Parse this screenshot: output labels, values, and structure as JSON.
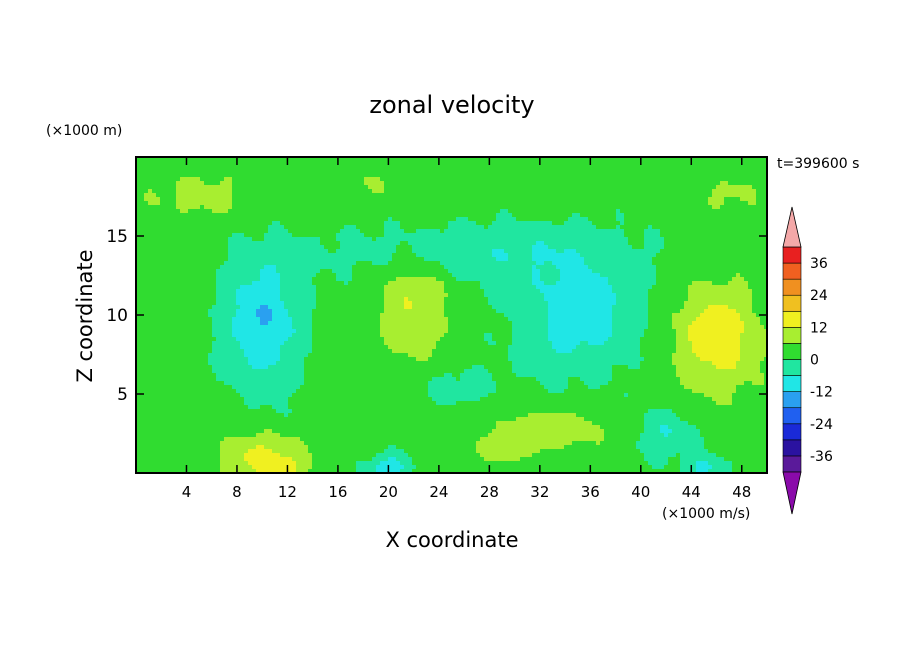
{
  "chart_data": {
    "type": "heatmap",
    "title": "zonal velocity",
    "xlabel": "X coordinate",
    "ylabel": "Z coordinate",
    "y_unit_label": "(×1000 m)",
    "colorbar_unit_label": "(×1000 m/s)",
    "time_label": "t=399600 s",
    "xlim": [
      0,
      50
    ],
    "ylim": [
      0,
      20
    ],
    "xticks": [
      4,
      8,
      12,
      16,
      20,
      24,
      28,
      32,
      36,
      40,
      44,
      48
    ],
    "yticks": [
      5,
      10,
      15
    ],
    "colorbar": {
      "levels": [
        -42,
        -36,
        -30,
        -24,
        -18,
        -12,
        -6,
        0,
        6,
        12,
        18,
        24,
        30,
        36,
        42
      ],
      "tick_values": [
        -36,
        -24,
        -12,
        0,
        12,
        24,
        36
      ],
      "colors": [
        "#5a1a9a",
        "#2a12a0",
        "#1a2ad8",
        "#2060f0",
        "#2aa0f0",
        "#20e6e6",
        "#20e6a0",
        "#30dc30",
        "#a8ee30",
        "#f0f020",
        "#f0c020",
        "#f09020",
        "#f06020",
        "#e82020"
      ],
      "under_color": "#8a0aaa",
      "over_color": "#f4a8a8"
    },
    "features": [
      {
        "x": 10,
        "z": 1.0,
        "amp": 12,
        "sx": 3.2,
        "sz": 1.6
      },
      {
        "x": 12,
        "z": 0.3,
        "amp": 6,
        "sx": 2.0,
        "sz": 0.8
      },
      {
        "x": 46,
        "z": 8.5,
        "amp": 14,
        "sx": 3.5,
        "sz": 3.5
      },
      {
        "x": 22,
        "z": 10.5,
        "amp": 10,
        "sx": 3.0,
        "sz": 3.5
      },
      {
        "x": 33,
        "z": 2.8,
        "amp": 8,
        "sx": 5.0,
        "sz": 1.3
      },
      {
        "x": 29,
        "z": 1.3,
        "amp": 5,
        "sx": 3.0,
        "sz": 1.0
      },
      {
        "x": 5,
        "z": 17.6,
        "amp": 6,
        "sx": 5.0,
        "sz": 1.6
      },
      {
        "x": 18,
        "z": 18.4,
        "amp": 4,
        "sx": 4.0,
        "sz": 1.2
      },
      {
        "x": 47,
        "z": 17.6,
        "amp": 5,
        "sx": 3.0,
        "sz": 1.3
      },
      {
        "x": 10,
        "z": 9.5,
        "amp": -14,
        "sx": 3.0,
        "sz": 4.0
      },
      {
        "x": 35,
        "z": 10.0,
        "amp": -12,
        "sx": 4.5,
        "sz": 3.5
      },
      {
        "x": 20,
        "z": 0.3,
        "amp": -14,
        "sx": 1.5,
        "sz": 0.8
      },
      {
        "x": 45,
        "z": 0.3,
        "amp": -10,
        "sx": 1.5,
        "sz": 0.8
      },
      {
        "x": 42,
        "z": 2.5,
        "amp": -8,
        "sx": 2.5,
        "sz": 1.5
      },
      {
        "x": 27,
        "z": 14.0,
        "amp": -7,
        "sx": 12.0,
        "sz": 1.8
      },
      {
        "x": 25,
        "z": 5.5,
        "amp": -4,
        "sx": 4.0,
        "sz": 1.5
      }
    ]
  }
}
